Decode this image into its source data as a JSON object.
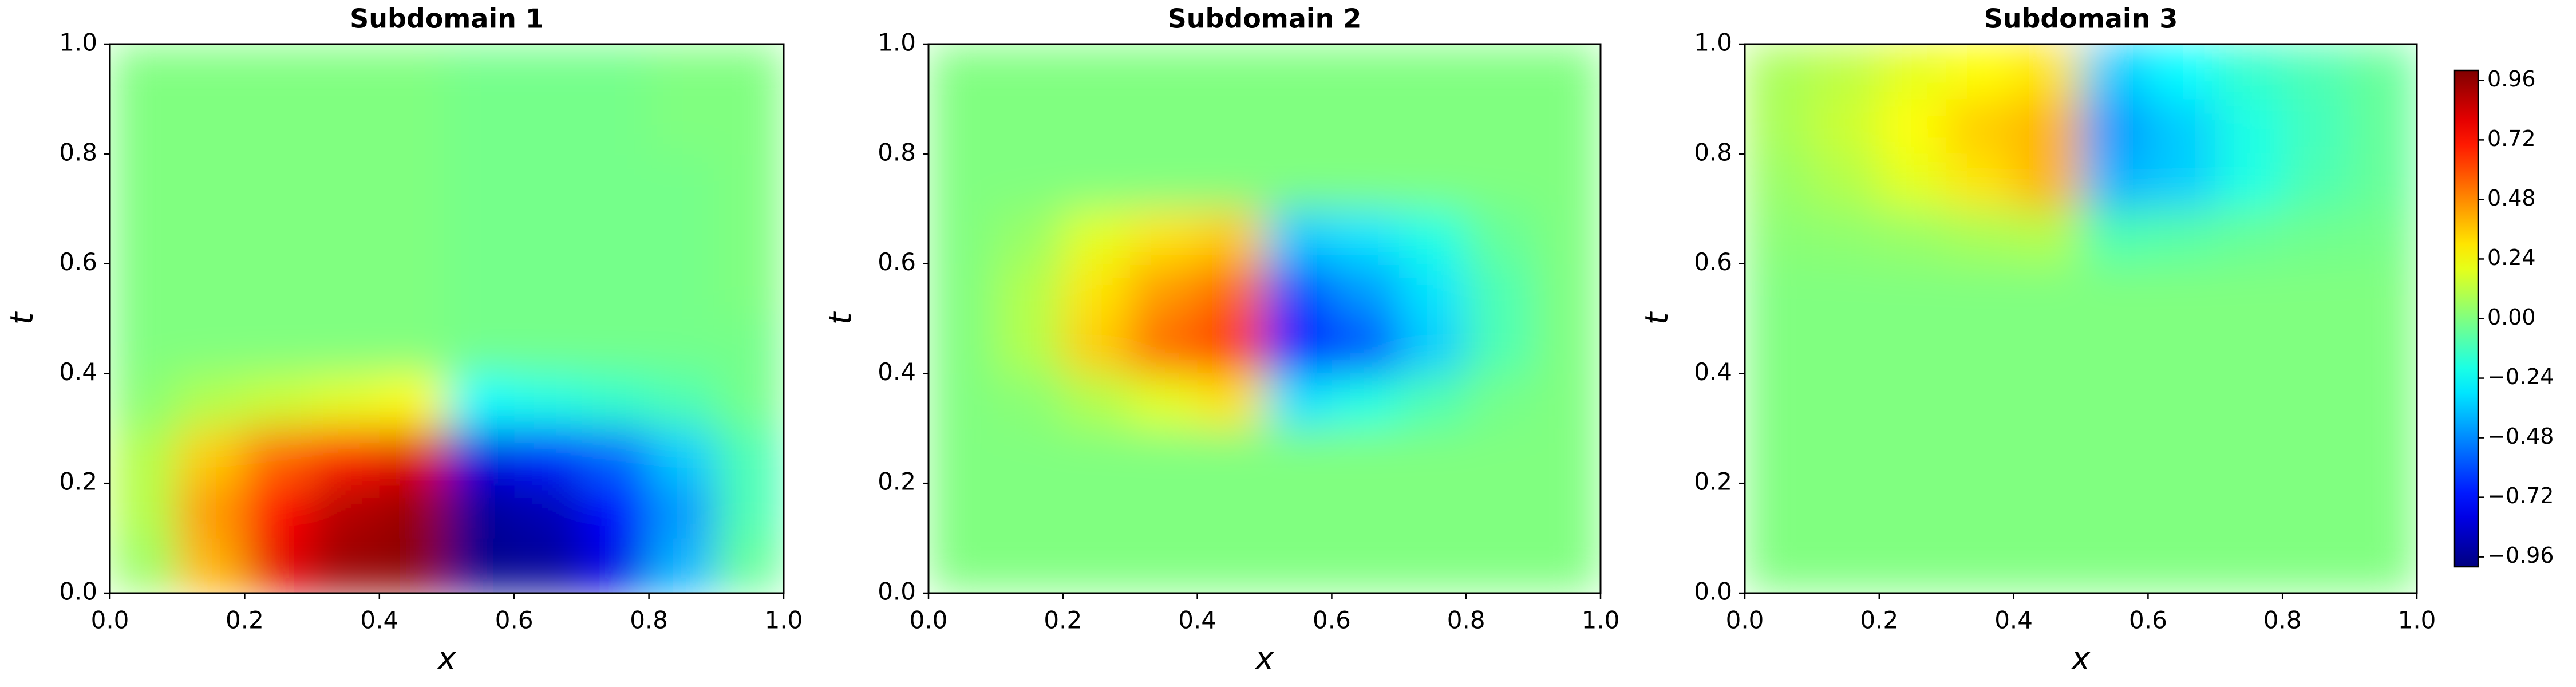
{
  "chart_data": [
    {
      "type": "contour",
      "title": "Subdomain 1",
      "xlabel": "x",
      "ylabel": "t",
      "xlim": [
        0,
        1
      ],
      "ylim": [
        0,
        1
      ],
      "xticks": [
        {
          "value": 0,
          "label": "0.0"
        },
        0.2,
        0.4,
        0.6,
        0.8,
        {
          "value": 1,
          "label": "1.0"
        }
      ],
      "yticks": [
        {
          "value": 0,
          "label": "0.0"
        },
        0.2,
        0.4,
        0.6,
        0.8,
        {
          "value": 1,
          "label": "1.0"
        }
      ],
      "z": [
        [
          0.05,
          0.4,
          0.8,
          0.95,
          0.98,
          -0.98,
          -0.95,
          -0.8,
          -0.4,
          -0.05
        ],
        [
          0.1,
          0.45,
          0.75,
          0.9,
          0.95,
          -0.95,
          -0.9,
          -0.75,
          -0.45,
          -0.1
        ],
        [
          0.1,
          0.35,
          0.55,
          0.7,
          0.8,
          -0.8,
          -0.7,
          -0.55,
          -0.35,
          -0.1
        ],
        [
          0.02,
          0.1,
          0.15,
          0.2,
          0.25,
          -0.25,
          -0.2,
          -0.15,
          -0.1,
          -0.02
        ],
        [
          0,
          0,
          0,
          0,
          0,
          -0.02,
          -0.02,
          -0.02,
          -0.02,
          -0.02
        ],
        [
          0,
          0,
          0,
          0,
          0,
          -0.02,
          -0.02,
          -0.02,
          -0.02,
          0
        ],
        [
          0,
          0,
          0,
          0,
          0,
          -0.02,
          -0.02,
          -0.02,
          -0.02,
          0
        ],
        [
          0,
          0,
          0,
          0,
          0,
          -0.02,
          -0.02,
          -0.02,
          -0.02,
          0
        ],
        [
          0,
          0,
          0,
          0,
          0,
          -0.02,
          -0.02,
          -0.02,
          0,
          0
        ],
        [
          0,
          0,
          0,
          0,
          0,
          -0.02,
          -0.02,
          -0.02,
          0,
          0
        ]
      ]
    },
    {
      "type": "contour",
      "title": "Subdomain 2",
      "xlabel": "x",
      "ylabel": "t",
      "xlim": [
        0,
        1
      ],
      "ylim": [
        0,
        1
      ],
      "xticks": [
        {
          "value": 0,
          "label": "0.0"
        },
        0.2,
        0.4,
        0.6,
        0.8,
        {
          "value": 1,
          "label": "1.0"
        }
      ],
      "yticks": [
        {
          "value": 0,
          "label": "0.0"
        },
        0.2,
        0.4,
        0.6,
        0.8,
        {
          "value": 1,
          "label": "1.0"
        }
      ],
      "z": [
        [
          0,
          0,
          0,
          0,
          0,
          0,
          0,
          0,
          0,
          0
        ],
        [
          0,
          0,
          0,
          0,
          0,
          0,
          0,
          0,
          0,
          0
        ],
        [
          0,
          0,
          0,
          0,
          0,
          0,
          0,
          0,
          0,
          0
        ],
        [
          0,
          0.02,
          0.1,
          0.2,
          0.3,
          -0.3,
          -0.2,
          -0.1,
          -0.02,
          0
        ],
        [
          0,
          0.1,
          0.35,
          0.55,
          0.65,
          -0.75,
          -0.6,
          -0.35,
          -0.1,
          0
        ],
        [
          0,
          0.1,
          0.3,
          0.45,
          0.55,
          -0.6,
          -0.45,
          -0.3,
          -0.1,
          0
        ],
        [
          0,
          0.05,
          0.2,
          0.3,
          0.35,
          -0.35,
          -0.3,
          -0.2,
          -0.05,
          0
        ],
        [
          0,
          0,
          0,
          0,
          0,
          0,
          0,
          0,
          0,
          0
        ],
        [
          0,
          0,
          0,
          0,
          0,
          0,
          0,
          0,
          0,
          0
        ],
        [
          0,
          0,
          0,
          0,
          0,
          0,
          0,
          0,
          0,
          0
        ]
      ]
    },
    {
      "type": "contour",
      "title": "Subdomain 3",
      "xlabel": "x",
      "ylabel": "t",
      "xlim": [
        0,
        1
      ],
      "ylim": [
        0,
        1
      ],
      "xticks": [
        {
          "value": 0,
          "label": "0.0"
        },
        0.2,
        0.4,
        0.6,
        0.8,
        {
          "value": 1,
          "label": "1.0"
        }
      ],
      "yticks": [
        {
          "value": 0,
          "label": "0.0"
        },
        0.2,
        0.4,
        0.6,
        0.8,
        {
          "value": 1,
          "label": "1.0"
        }
      ],
      "z": [
        [
          0,
          0,
          0,
          0,
          0,
          0,
          0,
          0,
          0,
          0
        ],
        [
          0,
          0,
          0,
          0,
          0,
          0,
          0,
          0,
          0,
          0
        ],
        [
          0,
          0,
          0,
          0,
          0,
          0,
          0,
          0,
          0,
          0
        ],
        [
          0,
          0,
          0,
          0,
          0,
          0,
          0,
          0,
          0,
          0
        ],
        [
          0,
          0,
          0,
          0,
          0,
          0,
          0,
          0,
          0,
          0
        ],
        [
          0,
          0,
          0,
          0,
          0,
          0,
          0,
          0,
          0,
          0
        ],
        [
          0.02,
          0.03,
          0.05,
          0.08,
          0.1,
          -0.1,
          -0.08,
          -0.05,
          -0.03,
          -0.02
        ],
        [
          0.05,
          0.1,
          0.2,
          0.3,
          0.4,
          -0.4,
          -0.35,
          -0.2,
          -0.1,
          -0.05
        ],
        [
          0.08,
          0.15,
          0.25,
          0.35,
          0.4,
          -0.45,
          -0.35,
          -0.2,
          -0.12,
          -0.05
        ],
        [
          0.08,
          0.12,
          0.2,
          0.25,
          0.3,
          -0.35,
          -0.25,
          -0.15,
          -0.1,
          -0.05
        ]
      ]
    }
  ],
  "colorbar": {
    "colormap": "jet",
    "clim": [
      -1,
      1
    ],
    "ticks": [
      {
        "value": -0.96,
        "label": "−0.96"
      },
      {
        "value": -0.72,
        "label": "−0.72"
      },
      {
        "value": -0.48,
        "label": "−0.48"
      },
      {
        "value": -0.24,
        "label": "−0.24"
      },
      {
        "value": 0,
        "label": "0.00"
      },
      0.24,
      0.48,
      0.72,
      0.96
    ]
  }
}
